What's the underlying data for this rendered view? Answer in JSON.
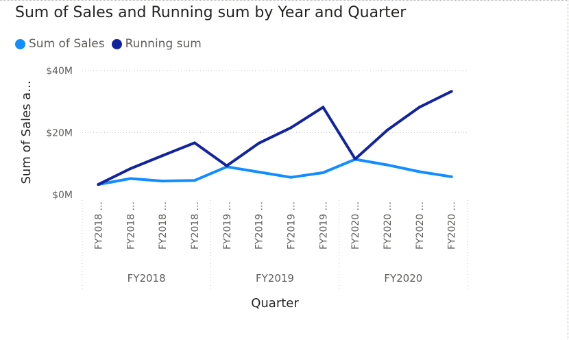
{
  "title": "Sum of Sales and Running sum by Year and Quarter",
  "legend": [
    {
      "label": "Sum of Sales",
      "color": "#118dff"
    },
    {
      "label": "Running sum",
      "color": "#12239e"
    }
  ],
  "chart_data": {
    "type": "line",
    "title": "Sum of Sales and Running sum by Year and Quarter",
    "xlabel": "Quarter",
    "ylabel": "Sum of Sales a...",
    "ylim": [
      0,
      40000000
    ],
    "yticks": [
      {
        "value": 0,
        "label": "$0M"
      },
      {
        "value": 20000000,
        "label": "$20M"
      },
      {
        "value": 40000000,
        "label": "$40M"
      }
    ],
    "grid": true,
    "legend_position": "top-left",
    "categories": [
      "FY2018 ...",
      "FY2018 ...",
      "FY2018 ...",
      "FY2018 ...",
      "FY2019 ...",
      "FY2019 ...",
      "FY2019 ...",
      "FY2019 ...",
      "FY2020 ...",
      "FY2020 ...",
      "FY2020 ...",
      "FY2020 ..."
    ],
    "groups": [
      {
        "label": "FY2018",
        "count": 4
      },
      {
        "label": "FY2019",
        "count": 4
      },
      {
        "label": "FY2020",
        "count": 4
      }
    ],
    "series": [
      {
        "name": "Sum of Sales",
        "color": "#118dff",
        "values": [
          3300000,
          5200000,
          4400000,
          4600000,
          9000000,
          7300000,
          5600000,
          7100000,
          11400000,
          9600000,
          7400000,
          5800000
        ]
      },
      {
        "name": "Running sum",
        "color": "#12239e",
        "values": [
          3300000,
          8400000,
          12600000,
          16700000,
          9300000,
          16600000,
          21600000,
          28200000,
          11500000,
          20800000,
          28200000,
          33300000
        ]
      }
    ]
  }
}
